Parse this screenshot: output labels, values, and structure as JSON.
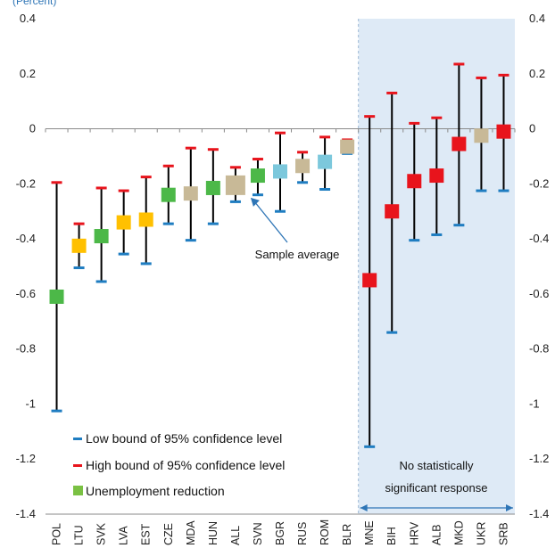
{
  "chart_data": {
    "type": "scatter",
    "unit_label": "(Percent)",
    "ylim": [
      -1.4,
      0.4
    ],
    "yticks": [
      "0.4",
      "0.2",
      "0",
      "-0.2",
      "-0.4",
      "-0.6",
      "-0.8",
      "-1",
      "-1.2",
      "-1.4"
    ],
    "ytick_values": [
      0.4,
      0.2,
      0,
      -0.2,
      -0.4,
      -0.6,
      -0.8,
      -1,
      -1.2,
      -1.4
    ],
    "categories": [
      "POL",
      "LTU",
      "SVK",
      "LVA",
      "EST",
      "CZE",
      "MDA",
      "HUN",
      "ALL",
      "SVN",
      "BGR",
      "RUS",
      "ROM",
      "BLR",
      "MNE",
      "BIH",
      "HRV",
      "ALB",
      "MKD",
      "UKR",
      "SRB"
    ],
    "values": [
      -0.61,
      -0.425,
      -0.39,
      -0.34,
      -0.33,
      -0.24,
      -0.235,
      -0.215,
      -0.205,
      -0.17,
      -0.155,
      -0.135,
      -0.12,
      -0.065,
      -0.55,
      -0.3,
      -0.19,
      -0.17,
      -0.055,
      -0.025,
      -0.01
    ],
    "low_bound": [
      -1.025,
      -0.505,
      -0.555,
      -0.455,
      -0.49,
      -0.345,
      -0.405,
      -0.345,
      -0.265,
      -0.24,
      -0.3,
      -0.195,
      -0.22,
      -0.09,
      -1.155,
      -0.74,
      -0.405,
      -0.385,
      -0.35,
      -0.225,
      -0.225
    ],
    "high_bound": [
      -0.195,
      -0.345,
      -0.215,
      -0.225,
      -0.175,
      -0.135,
      -0.07,
      -0.075,
      -0.14,
      -0.11,
      -0.015,
      -0.085,
      -0.03,
      -0.04,
      0.045,
      0.13,
      0.02,
      0.04,
      0.235,
      0.185,
      0.195
    ],
    "colors": [
      "#4CB848",
      "#FFC000",
      "#4CB848",
      "#FFC000",
      "#FFC000",
      "#4CB848",
      "#C8B997",
      "#4CB848",
      "#C8B997",
      "#4CB848",
      "#7CC8DC",
      "#C8B997",
      "#7CC8DC",
      "#C8B997",
      "#E8141C",
      "#E8141C",
      "#E8141C",
      "#E8141C",
      "#E8141C",
      "#C8B997",
      "#E8141C"
    ],
    "legend": [
      {
        "label": "Low bound of 95% confidence level",
        "color": "#1F7DC1",
        "marker": "dash"
      },
      {
        "label": "High bound of 95% confidence level",
        "color": "#E8141C",
        "marker": "dash"
      },
      {
        "label": "Unemployment reduction",
        "color": "#7AC143",
        "marker": "square"
      }
    ],
    "annotations": {
      "sample_average": "Sample average",
      "region_line1": "No statistically",
      "region_line2": "significant response"
    },
    "shaded_region_start": "MNE",
    "colors_meta": {
      "shade": "#DEEAF6",
      "bar": "#000000",
      "low": "#1F7DC1",
      "high": "#E8141C",
      "arrow": "#2E75B6"
    }
  }
}
